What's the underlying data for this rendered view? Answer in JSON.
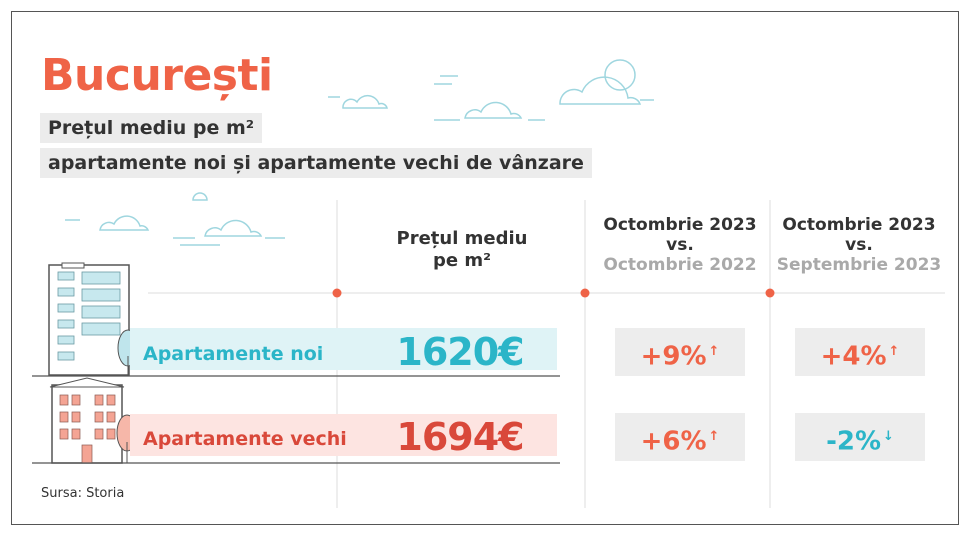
{
  "title": "București",
  "subtitle_line1": "Prețul mediu pe m²",
  "subtitle_line2": "apartamente noi și apartamente vechi de vânzare",
  "columns": {
    "price_line1": "Prețul mediu",
    "price_line2": "pe m²",
    "yoy_line1": "Octombrie 2023",
    "yoy_line2": "vs.",
    "yoy_line3": "Octombrie 2022",
    "mom_line1": "Octombrie 2023",
    "mom_line2": "vs.",
    "mom_line3": "Septembrie 2023"
  },
  "rows": [
    {
      "label": "Apartamente noi",
      "price": "1620€",
      "yoy": "+9%",
      "yoy_arrow": "↑",
      "mom": "+4%",
      "mom_arrow": "↑"
    },
    {
      "label": "Apartamente vechi",
      "price": "1694€",
      "yoy": "+6%",
      "yoy_arrow": "↑",
      "mom": "-2%",
      "mom_arrow": "↓"
    }
  ],
  "source": "Sursa: Storia",
  "colors": {
    "accent_red": "#ef6347",
    "teal": "#2bb5c8",
    "teal_band": "#dff3f6",
    "red_band": "#fde4e1",
    "dark_red": "#d9483a",
    "box_bg": "#ededed"
  }
}
